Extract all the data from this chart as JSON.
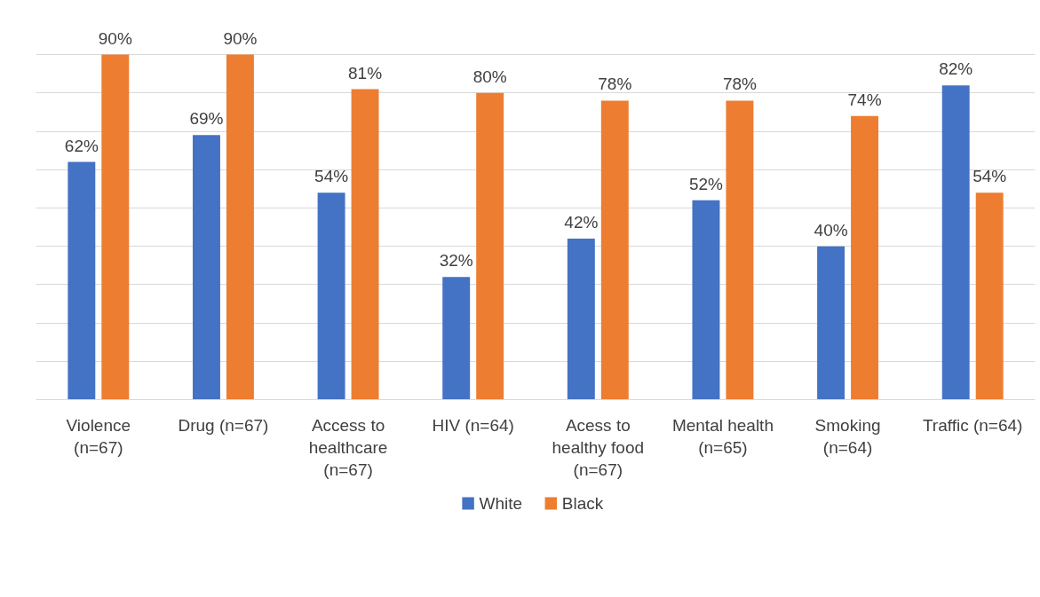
{
  "chart_data": {
    "type": "bar",
    "categories": [
      "Violence (n=67)",
      "Drug (n=67)",
      "Access to healthcare (n=67)",
      "HIV (n=64)",
      "Acess to healthy food (n=67)",
      "Mental health (n=65)",
      "Smoking (n=64)",
      "Traffic (n=64)"
    ],
    "series": [
      {
        "name": "White",
        "color": "#4472c4",
        "values": [
          62,
          69,
          54,
          32,
          42,
          52,
          40,
          82
        ],
        "value_labels": [
          "62%",
          "69%",
          "54%",
          "32%",
          "42%",
          "52%",
          "40%",
          "82%"
        ]
      },
      {
        "name": "Black",
        "color": "#ed7d31",
        "values": [
          90,
          90,
          81,
          80,
          78,
          78,
          74,
          54
        ],
        "value_labels": [
          "90%",
          "90%",
          "81%",
          "80%",
          "78%",
          "78%",
          "74%",
          "54%"
        ]
      }
    ],
    "yticks": [
      {
        "value": 0,
        "label": null
      },
      {
        "value": 10,
        "label": null
      },
      {
        "value": 20,
        "label": null
      },
      {
        "value": 30,
        "label": null
      },
      {
        "value": 40,
        "label": null
      },
      {
        "value": 50,
        "label": null
      },
      {
        "value": 60,
        "label": null
      },
      {
        "value": 70,
        "label": null
      },
      {
        "value": 80,
        "label": null
      },
      {
        "value": 90,
        "label": null
      }
    ],
    "tick_labels": "x",
    "grid": "y",
    "legend": "bottom"
  }
}
